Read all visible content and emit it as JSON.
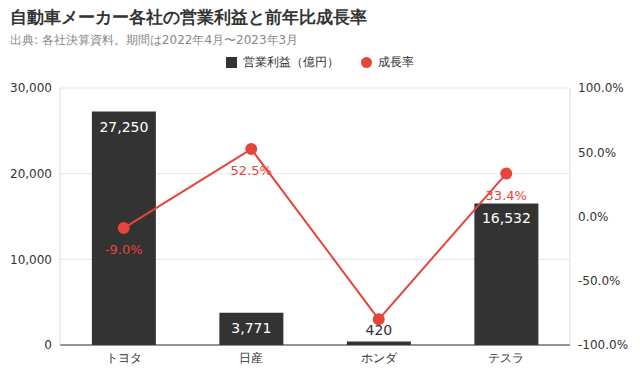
{
  "chart_data": {
    "type": "bar",
    "title": "自動車メーカー各社の営業利益と前年比成長率",
    "subtitle": "出典: 各社決算資料。期間は2022年4月〜2023年3月",
    "categories": [
      "トヨタ",
      "日産",
      "ホンダ",
      "テスラ"
    ],
    "series": [
      {
        "name": "営業利益（億円）",
        "type": "bar",
        "color": "#333333",
        "values": [
          27250,
          3771,
          420,
          16532
        ],
        "value_labels": [
          "27,250",
          "3,771",
          "420",
          "16,532"
        ]
      },
      {
        "name": "成長率",
        "type": "line",
        "axis": "y2",
        "color": "#e5453a",
        "marker": "circle",
        "values": [
          -9.0,
          52.5,
          -80,
          33.4
        ],
        "value_labels": [
          "-9.0%",
          "52.5%",
          null,
          "33.4%"
        ]
      }
    ],
    "ylim": [
      0,
      30000
    ],
    "yticks": [
      0,
      {
        "value": 10000,
        "label": "10,000"
      },
      {
        "value": 20000,
        "label": "20,000"
      },
      {
        "value": 30000,
        "label": "30,000"
      }
    ],
    "y2lim": [
      -100,
      100
    ],
    "y2ticks": [
      {
        "value": -100,
        "label": "-100.0%"
      },
      {
        "value": -50,
        "label": "-50.0%"
      },
      {
        "value": 0,
        "label": "0.0%"
      },
      {
        "value": 50,
        "label": "50.0%"
      },
      {
        "value": 100,
        "label": "100.0%"
      }
    ],
    "grid": true,
    "legend": "top",
    "data_labels": true
  }
}
